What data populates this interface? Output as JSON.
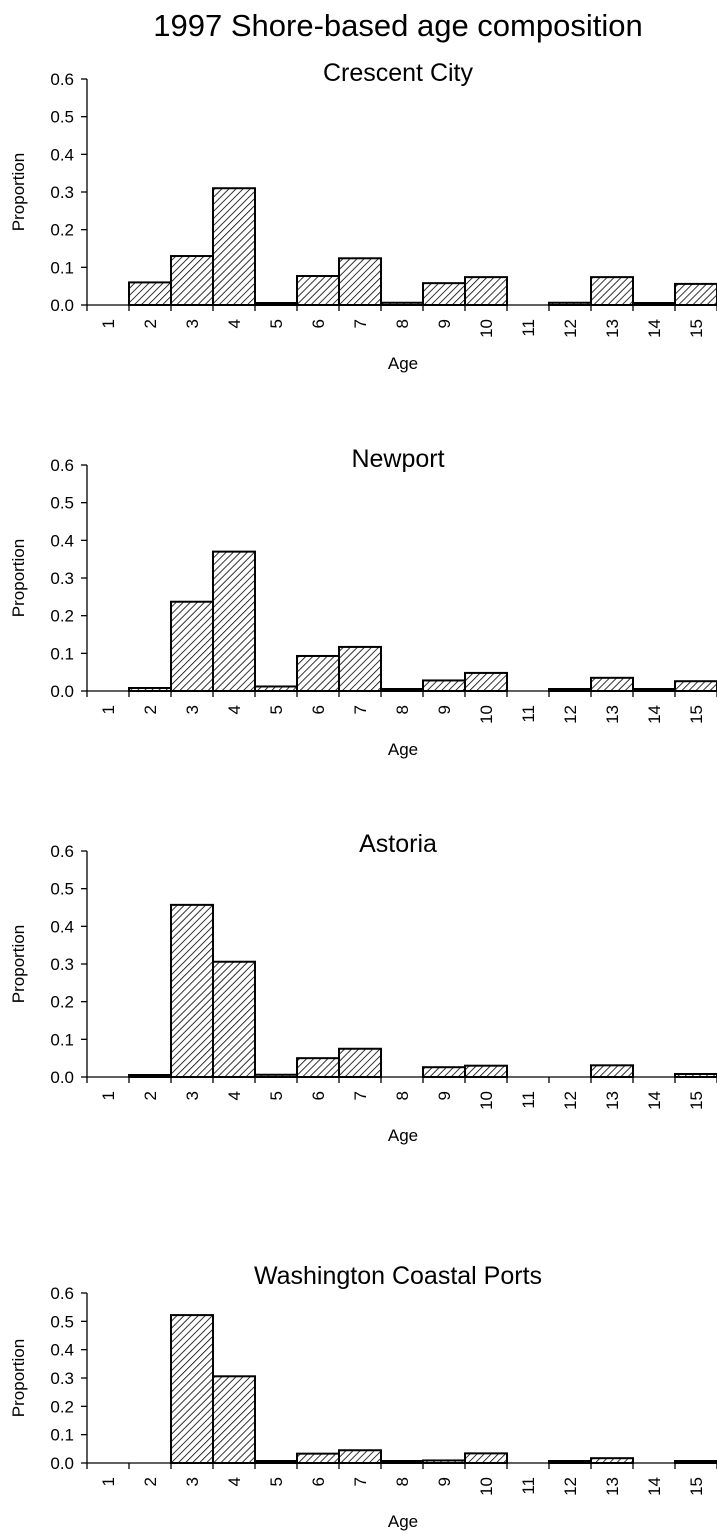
{
  "main_title": "1997 Shore-based age composition",
  "chart_data": [
    {
      "type": "bar",
      "title": "Crescent City",
      "xlabel": "Age",
      "ylabel": "Proportion",
      "categories": [
        "1",
        "2",
        "3",
        "4",
        "5",
        "6",
        "7",
        "8",
        "9",
        "10",
        "11",
        "12",
        "13",
        "14",
        "15"
      ],
      "values": [
        0.0,
        0.06,
        0.13,
        0.31,
        0.005,
        0.077,
        0.124,
        0.006,
        0.058,
        0.074,
        0.0,
        0.006,
        0.074,
        0.003,
        0.056
      ],
      "yticks": [
        "0.0",
        "0.1",
        "0.2",
        "0.3",
        "0.4",
        "0.5",
        "0.6"
      ],
      "ylim": [
        0,
        0.6
      ],
      "grid": false,
      "pattern": "diagonal-hatch"
    },
    {
      "type": "bar",
      "title": "Newport",
      "xlabel": "Age",
      "ylabel": "Proportion",
      "categories": [
        "1",
        "2",
        "3",
        "4",
        "5",
        "6",
        "7",
        "8",
        "9",
        "10",
        "11",
        "12",
        "13",
        "14",
        "15"
      ],
      "values": [
        0.0,
        0.008,
        0.237,
        0.37,
        0.012,
        0.093,
        0.117,
        0.004,
        0.028,
        0.048,
        0.0,
        0.002,
        0.035,
        0.002,
        0.026
      ],
      "yticks": [
        "0.0",
        "0.1",
        "0.2",
        "0.3",
        "0.4",
        "0.5",
        "0.6"
      ],
      "ylim": [
        0,
        0.6
      ],
      "grid": false,
      "pattern": "diagonal-hatch"
    },
    {
      "type": "bar",
      "title": "Astoria",
      "xlabel": "Age",
      "ylabel": "Proportion",
      "categories": [
        "1",
        "2",
        "3",
        "4",
        "5",
        "6",
        "7",
        "8",
        "9",
        "10",
        "11",
        "12",
        "13",
        "14",
        "15"
      ],
      "values": [
        0.0,
        0.003,
        0.457,
        0.306,
        0.006,
        0.05,
        0.075,
        0.0,
        0.026,
        0.03,
        0.0,
        0.0,
        0.031,
        0.0,
        0.008
      ],
      "yticks": [
        "0.0",
        "0.1",
        "0.2",
        "0.3",
        "0.4",
        "0.5",
        "0.6"
      ],
      "ylim": [
        0,
        0.6
      ],
      "grid": false,
      "pattern": "diagonal-hatch"
    },
    {
      "type": "bar",
      "title": "Washington Coastal Ports",
      "xlabel": "Age",
      "ylabel": "Proportion",
      "categories": [
        "1",
        "2",
        "3",
        "4",
        "5",
        "6",
        "7",
        "8",
        "9",
        "10",
        "11",
        "12",
        "13",
        "14",
        "15"
      ],
      "values": [
        0.0,
        0.0,
        0.522,
        0.306,
        0.002,
        0.033,
        0.045,
        0.002,
        0.009,
        0.034,
        0.0,
        0.005,
        0.017,
        0.0,
        0.002
      ],
      "yticks": [
        "0.0",
        "0.1",
        "0.2",
        "0.3",
        "0.4",
        "0.5",
        "0.6"
      ],
      "ylim": [
        0,
        0.6
      ],
      "grid": false,
      "pattern": "diagonal-hatch"
    }
  ]
}
